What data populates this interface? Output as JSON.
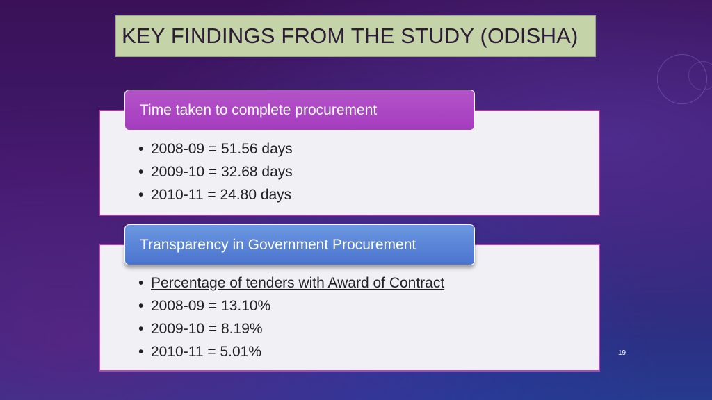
{
  "slide": {
    "title": "KEY FINDINGS FROM THE STUDY (ODISHA)",
    "page_number": "19"
  },
  "section1": {
    "header": "Time taken to complete procurement",
    "bullets": [
      "2008-09  = 51.56 days",
      "2009-10 = 32.68 days",
      "2010-11 = 24.80 days"
    ]
  },
  "section2": {
    "header": "Transparency in Government Procurement",
    "bullets": [
      "Percentage of tenders with Award of Contract",
      "2008-09  = 13.10%",
      "2009-10 = 8.19%",
      "2010-11 = 5.01%"
    ]
  },
  "colors": {
    "title_bg": "#c5d3a9",
    "header1_bg": "#ae48c4",
    "header2_bg": "#5a84d6",
    "panel_bg": "#f1f1f5",
    "panel_border": "#a63aa0"
  }
}
